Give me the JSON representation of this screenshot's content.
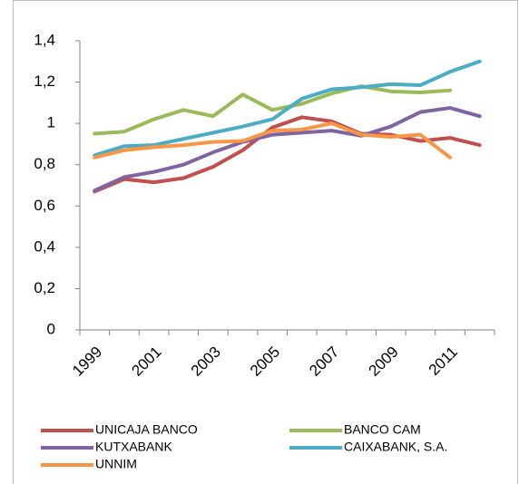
{
  "chart_data": {
    "type": "line",
    "categories": [
      "1999",
      null,
      "2001",
      null,
      "2003",
      null,
      "2005",
      null,
      "2007",
      null,
      "2009",
      null,
      "2011",
      null
    ],
    "series": [
      {
        "name": "UNICAJA BANCO",
        "color": "#c0504d",
        "values": [
          0.67,
          0.73,
          0.715,
          0.735,
          0.79,
          0.87,
          0.98,
          1.03,
          1.01,
          0.95,
          0.945,
          0.915,
          0.93,
          0.895
        ]
      },
      {
        "name": "BANCO CAM",
        "color": "#9bbb59",
        "values": [
          0.95,
          0.96,
          1.02,
          1.065,
          1.035,
          1.14,
          1.065,
          1.095,
          1.145,
          1.18,
          1.155,
          1.15,
          1.16,
          null
        ]
      },
      {
        "name": "KUTXABANK",
        "color": "#8064a2",
        "values": [
          0.675,
          0.74,
          0.765,
          0.8,
          0.86,
          0.91,
          0.945,
          0.955,
          0.965,
          0.94,
          0.985,
          1.055,
          1.075,
          1.035
        ]
      },
      {
        "name": "CAIXABANK, S.A.",
        "color": "#4bacc6",
        "values": [
          0.845,
          0.89,
          0.895,
          0.925,
          0.955,
          0.985,
          1.02,
          1.12,
          1.165,
          1.175,
          1.19,
          1.185,
          1.25,
          1.3
        ]
      },
      {
        "name": "UNNIM",
        "color": "#f79646",
        "values": [
          0.835,
          0.87,
          0.885,
          0.895,
          0.91,
          0.915,
          0.965,
          0.97,
          1.0,
          0.945,
          0.935,
          0.945,
          0.835,
          null
        ]
      }
    ],
    "ylim": [
      0,
      1.4
    ],
    "yticks": [
      0,
      {
        "value": 0.2,
        "label": "0,2"
      },
      {
        "value": 0.4,
        "label": "0,4"
      },
      {
        "value": 0.6,
        "label": "0,6"
      },
      {
        "value": 0.8,
        "label": "0,8"
      },
      1,
      {
        "value": 1.2,
        "label": "1,2"
      },
      {
        "value": 1.4,
        "label": "1,4"
      }
    ],
    "legend": "bottom"
  }
}
